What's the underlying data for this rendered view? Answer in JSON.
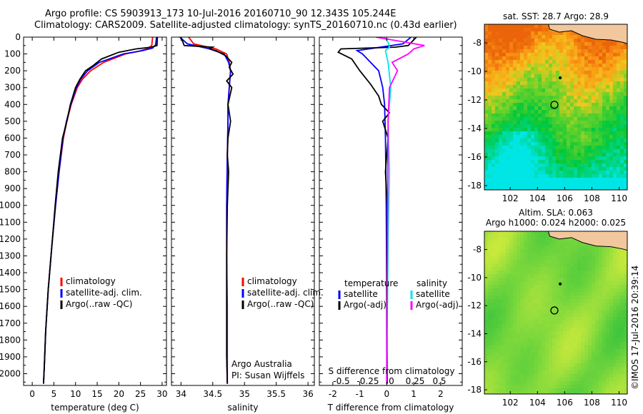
{
  "header": {
    "line1": "Argo profile: CS 5903913_173 10-Jul-2016 20160710_90 12.343S 105.244E",
    "line2": "Climatology: CARS2009. Satellite-adjusted climatology: synTS_20160710.nc (0.43d earlier)"
  },
  "colors": {
    "climatology": "#ff0000",
    "satellite": "#0000ff",
    "argo": "#000000",
    "sat_salinity": "#00e5ee",
    "argo_salinity": "#ff00ff"
  },
  "chart_data": [
    {
      "type": "line",
      "id": "temperature",
      "xlabel": "temperature (deg C)",
      "xticks": [
        0,
        5,
        10,
        15,
        20,
        25,
        30
      ],
      "xlim": [
        -2,
        31
      ],
      "ylim": [
        0,
        2070
      ],
      "yticks": [
        0,
        100,
        200,
        300,
        400,
        500,
        600,
        700,
        800,
        900,
        1000,
        1100,
        1200,
        1300,
        1400,
        1500,
        1600,
        1700,
        1800,
        1900,
        2000
      ],
      "legend": [
        "climatology",
        "satellite-adj. clim.",
        "Argo(..raw -QC)"
      ],
      "series": [
        {
          "name": "climatology",
          "color": "#ff0000",
          "x": [
            27.8,
            27.6,
            26.5,
            24.5,
            21.5,
            16.5,
            13.5,
            11.6,
            10.4,
            9.0,
            8.0,
            7.2,
            6.2,
            5.4,
            4.5,
            3.7,
            3.1,
            2.8,
            2.6
          ],
          "y": [
            0,
            50,
            70,
            85,
            100,
            150,
            200,
            250,
            300,
            400,
            500,
            600,
            800,
            1000,
            1250,
            1500,
            1750,
            1950,
            2060
          ]
        },
        {
          "name": "satellite-adj. clim.",
          "color": "#0000ff",
          "x": [
            28.7,
            28.5,
            27.8,
            25.5,
            21.0,
            15.5,
            12.8,
            11.2,
            10.2,
            8.9,
            7.9,
            7.1,
            6.2,
            5.4,
            4.5,
            3.7,
            3.1,
            2.8,
            2.6
          ],
          "y": [
            0,
            45,
            65,
            80,
            100,
            150,
            200,
            250,
            300,
            400,
            500,
            600,
            800,
            1000,
            1250,
            1500,
            1750,
            1950,
            2060
          ]
        },
        {
          "name": "Argo(..raw -QC)",
          "color": "#000000",
          "x": [
            28.9,
            28.8,
            27.5,
            24.0,
            20.0,
            16.0,
            14.0,
            12.3,
            11.0,
            10.0,
            8.8,
            8.0,
            7.0,
            6.0,
            5.3,
            4.5,
            3.7,
            3.1,
            2.8,
            2.6
          ],
          "y": [
            0,
            50,
            60,
            70,
            90,
            130,
            170,
            200,
            250,
            300,
            400,
            500,
            600,
            800,
            1000,
            1250,
            1500,
            1750,
            1950,
            2060
          ]
        }
      ]
    },
    {
      "type": "line",
      "id": "salinity",
      "xlabel": "salinity",
      "xticks": [
        34,
        34.5,
        35,
        35.5,
        36
      ],
      "xlim": [
        33.85,
        36.1
      ],
      "ylim": [
        0,
        2070
      ],
      "legend": [
        "climatology",
        "satellite-adj. clim.",
        "Argo(..raw -QC)"
      ],
      "annotations": [
        "Argo Australia",
        "PI: Susan Wijffels"
      ],
      "series": [
        {
          "name": "climatology",
          "color": "#ff0000",
          "x": [
            34.12,
            34.2,
            34.55,
            34.72,
            34.76,
            34.78,
            34.76,
            34.74,
            34.74,
            34.73,
            34.72,
            34.72,
            34.73,
            34.73,
            34.73
          ],
          "y": [
            0,
            40,
            70,
            100,
            150,
            200,
            300,
            400,
            500,
            700,
            1000,
            1300,
            1600,
            1900,
            2060
          ]
        },
        {
          "name": "satellite-adj. clim.",
          "color": "#0000ff",
          "x": [
            33.98,
            34.1,
            34.45,
            34.68,
            34.75,
            34.78,
            34.76,
            34.74,
            34.74,
            34.73,
            34.72,
            34.72,
            34.72,
            34.72,
            34.73
          ],
          "y": [
            0,
            40,
            70,
            100,
            150,
            200,
            300,
            400,
            500,
            700,
            1000,
            1300,
            1600,
            1900,
            2060
          ]
        },
        {
          "name": "Argo(..raw -QC)",
          "color": "#000000",
          "x": [
            34.0,
            34.05,
            34.5,
            34.45,
            34.55,
            34.7,
            34.8,
            34.76,
            34.82,
            34.72,
            34.8,
            34.74,
            34.78,
            34.74,
            34.73,
            34.75,
            34.73,
            34.72,
            34.72,
            34.72,
            34.73
          ],
          "y": [
            0,
            50,
            60,
            70,
            80,
            110,
            150,
            180,
            220,
            260,
            300,
            400,
            500,
            600,
            700,
            800,
            1000,
            1300,
            1600,
            1900,
            2060
          ]
        }
      ]
    },
    {
      "type": "line",
      "id": "difference",
      "xlabel": "T difference from climatology",
      "xticks": [
        -2,
        -1,
        0,
        1,
        2
      ],
      "xlim": [
        -2.5,
        2.8
      ],
      "top_axis_label": "S difference from climatology",
      "top_ticks": [
        "-0.5",
        "-0.25",
        "0",
        "0.25",
        "0.5"
      ],
      "ylim": [
        0,
        2070
      ],
      "legend": {
        "temperature": [
          "satellite",
          "Argo(-adj)"
        ],
        "salinity": [
          "satellite",
          "Argo(-adj)"
        ]
      },
      "series": [
        {
          "name": "satellite",
          "group": "temperature",
          "color": "#0000ff",
          "x": [
            0.9,
            0.6,
            -1.1,
            -0.9,
            -0.6,
            -0.3,
            -0.15,
            -0.08,
            -0.05,
            -0.02,
            0.0,
            0.0
          ],
          "y": [
            0,
            40,
            80,
            100,
            150,
            200,
            300,
            400,
            600,
            1000,
            1500,
            2060
          ]
        },
        {
          "name": "Argo(-adj)",
          "group": "temperature",
          "color": "#000000",
          "x": [
            1.1,
            0.8,
            0.3,
            -1.7,
            -1.8,
            -1.3,
            -1.0,
            -0.6,
            -0.3,
            -0.2,
            0.1,
            -0.15,
            0.05,
            -0.05,
            0.02,
            0.0,
            0.02
          ],
          "y": [
            0,
            50,
            60,
            70,
            90,
            130,
            200,
            280,
            350,
            400,
            450,
            500,
            600,
            800,
            1000,
            1500,
            2060
          ]
        },
        {
          "name": "satellite",
          "group": "salinity",
          "color": "#00e5ee",
          "x": [
            -0.1,
            0.05,
            0.1,
            -0.05,
            0.05,
            0.15,
            0.05,
            0.1,
            0.05,
            0.0
          ],
          "y": [
            0,
            30,
            60,
            80,
            150,
            300,
            500,
            800,
            1200,
            2060
          ]
        },
        {
          "name": "Argo(-adj)",
          "group": "salinity",
          "color": "#ff00ff",
          "x": [
            -0.4,
            1.4,
            1.0,
            0.8,
            0.2,
            0.4,
            0.1,
            0.05,
            0.0
          ],
          "y": [
            0,
            50,
            70,
            100,
            150,
            200,
            300,
            500,
            2060
          ]
        }
      ]
    },
    {
      "type": "heatmap",
      "id": "sst-map",
      "title": "sat. SST: 28.7 Argo: 28.9",
      "xticks": [
        102,
        104,
        106,
        108,
        110
      ],
      "yticks": [
        -8,
        -10,
        -12,
        -14,
        -16,
        -18
      ],
      "xlim": [
        100.1,
        110.6
      ],
      "ylim": [
        -18.3,
        -6.7
      ],
      "argo_position": {
        "lon": 105.244,
        "lat": -12.343
      },
      "island_position": {
        "lon": 105.67,
        "lat": -10.45
      }
    },
    {
      "type": "heatmap",
      "id": "sla-map",
      "title_lines": [
        "Altim. SLA: 0.063",
        "Argo h1000: 0.024 h2000: 0.025"
      ],
      "xticks": [
        102,
        104,
        106,
        108,
        110
      ],
      "yticks": [
        -8,
        -10,
        -12,
        -14,
        -16,
        -18
      ],
      "xlim": [
        100.1,
        110.6
      ],
      "ylim": [
        -18.3,
        -6.7
      ],
      "argo_position": {
        "lon": 105.244,
        "lat": -12.343
      },
      "island_position": {
        "lon": 105.67,
        "lat": -10.45
      }
    }
  ],
  "footer": {
    "credit": "©IMOS 17-Jul-2016 20:39:14"
  }
}
